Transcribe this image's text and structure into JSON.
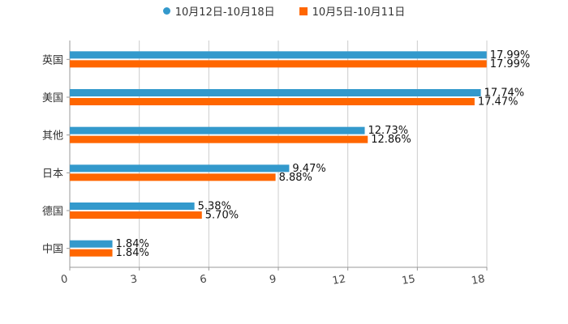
{
  "chart_data": {
    "type": "bar",
    "orientation": "horizontal",
    "categories": [
      "英国",
      "美国",
      "其他",
      "日本",
      "德国",
      "中国"
    ],
    "series": [
      {
        "name": "10月12日-10月18日",
        "color": "#3399cc",
        "marker": "circle",
        "values": [
          17.99,
          17.74,
          12.73,
          9.47,
          5.38,
          1.84
        ],
        "labels": [
          "17.99%",
          "17.74%",
          "12.73%",
          "9.47%",
          "5.38%",
          "1.84%"
        ]
      },
      {
        "name": "10月5日-10月11日",
        "color": "#ff6600",
        "marker": "square",
        "values": [
          17.99,
          17.47,
          12.86,
          8.88,
          5.7,
          1.84
        ],
        "labels": [
          "17.99%",
          "17.47%",
          "12.86%",
          "8.88%",
          "5.70%",
          "1.84%"
        ]
      }
    ],
    "xlim": [
      0,
      18
    ],
    "xticks": [
      "0",
      "3",
      "6",
      "9",
      "12",
      "15",
      "18"
    ],
    "tick_values": [
      0,
      3,
      6,
      9,
      12,
      15,
      18
    ],
    "grid": true,
    "legend_position": "top-center",
    "title": "",
    "xlabel": "",
    "ylabel": ""
  }
}
